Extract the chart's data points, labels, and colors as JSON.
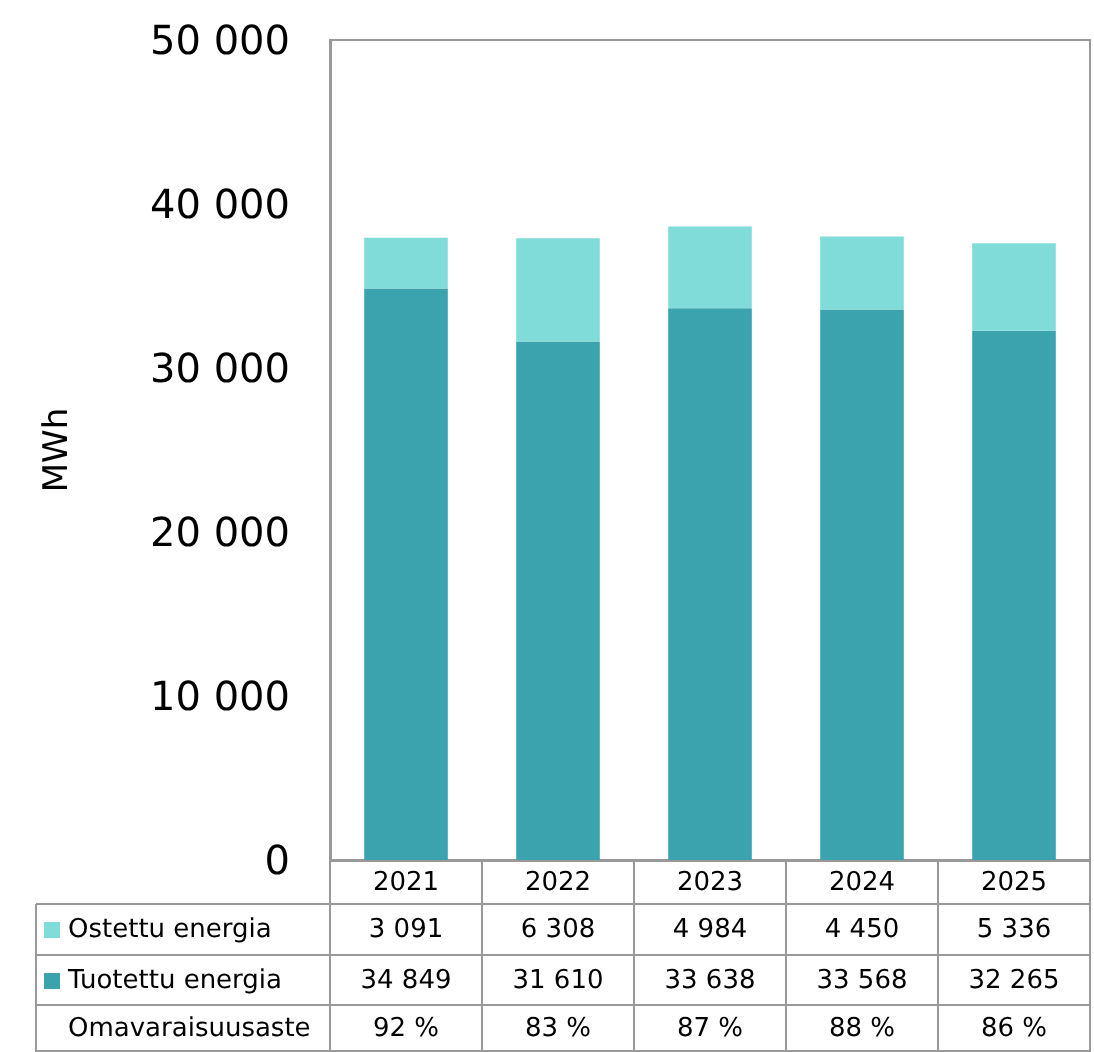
{
  "chart_data": {
    "type": "bar",
    "stacked": true,
    "ylabel": "MWh",
    "categories": [
      "2021",
      "2022",
      "2023",
      "2024",
      "2025"
    ],
    "series": [
      {
        "name": "Tuotettu energia",
        "color": "#3aa3ad",
        "values": [
          34849,
          31610,
          33638,
          33568,
          32265
        ]
      },
      {
        "name": "Ostettu energia",
        "color": "#80dcd8",
        "values": [
          3091,
          6308,
          4984,
          4450,
          5336
        ]
      }
    ],
    "ylim": [
      0,
      50000
    ],
    "yticks": [
      {
        "value": 0,
        "label": "0"
      },
      {
        "value": 10000,
        "label": "10 000"
      },
      {
        "value": 20000,
        "label": "20 000"
      },
      {
        "value": 30000,
        "label": "30 000"
      },
      {
        "value": 40000,
        "label": "40 000"
      },
      {
        "value": 50000,
        "label": "50 000"
      }
    ],
    "data_labels": true,
    "legend": "bottom",
    "grid": false,
    "annotations": [
      "Omavaraisuusaste",
      "92 %",
      "83 %",
      "87 %",
      "88 %",
      "86 %"
    ]
  }
}
